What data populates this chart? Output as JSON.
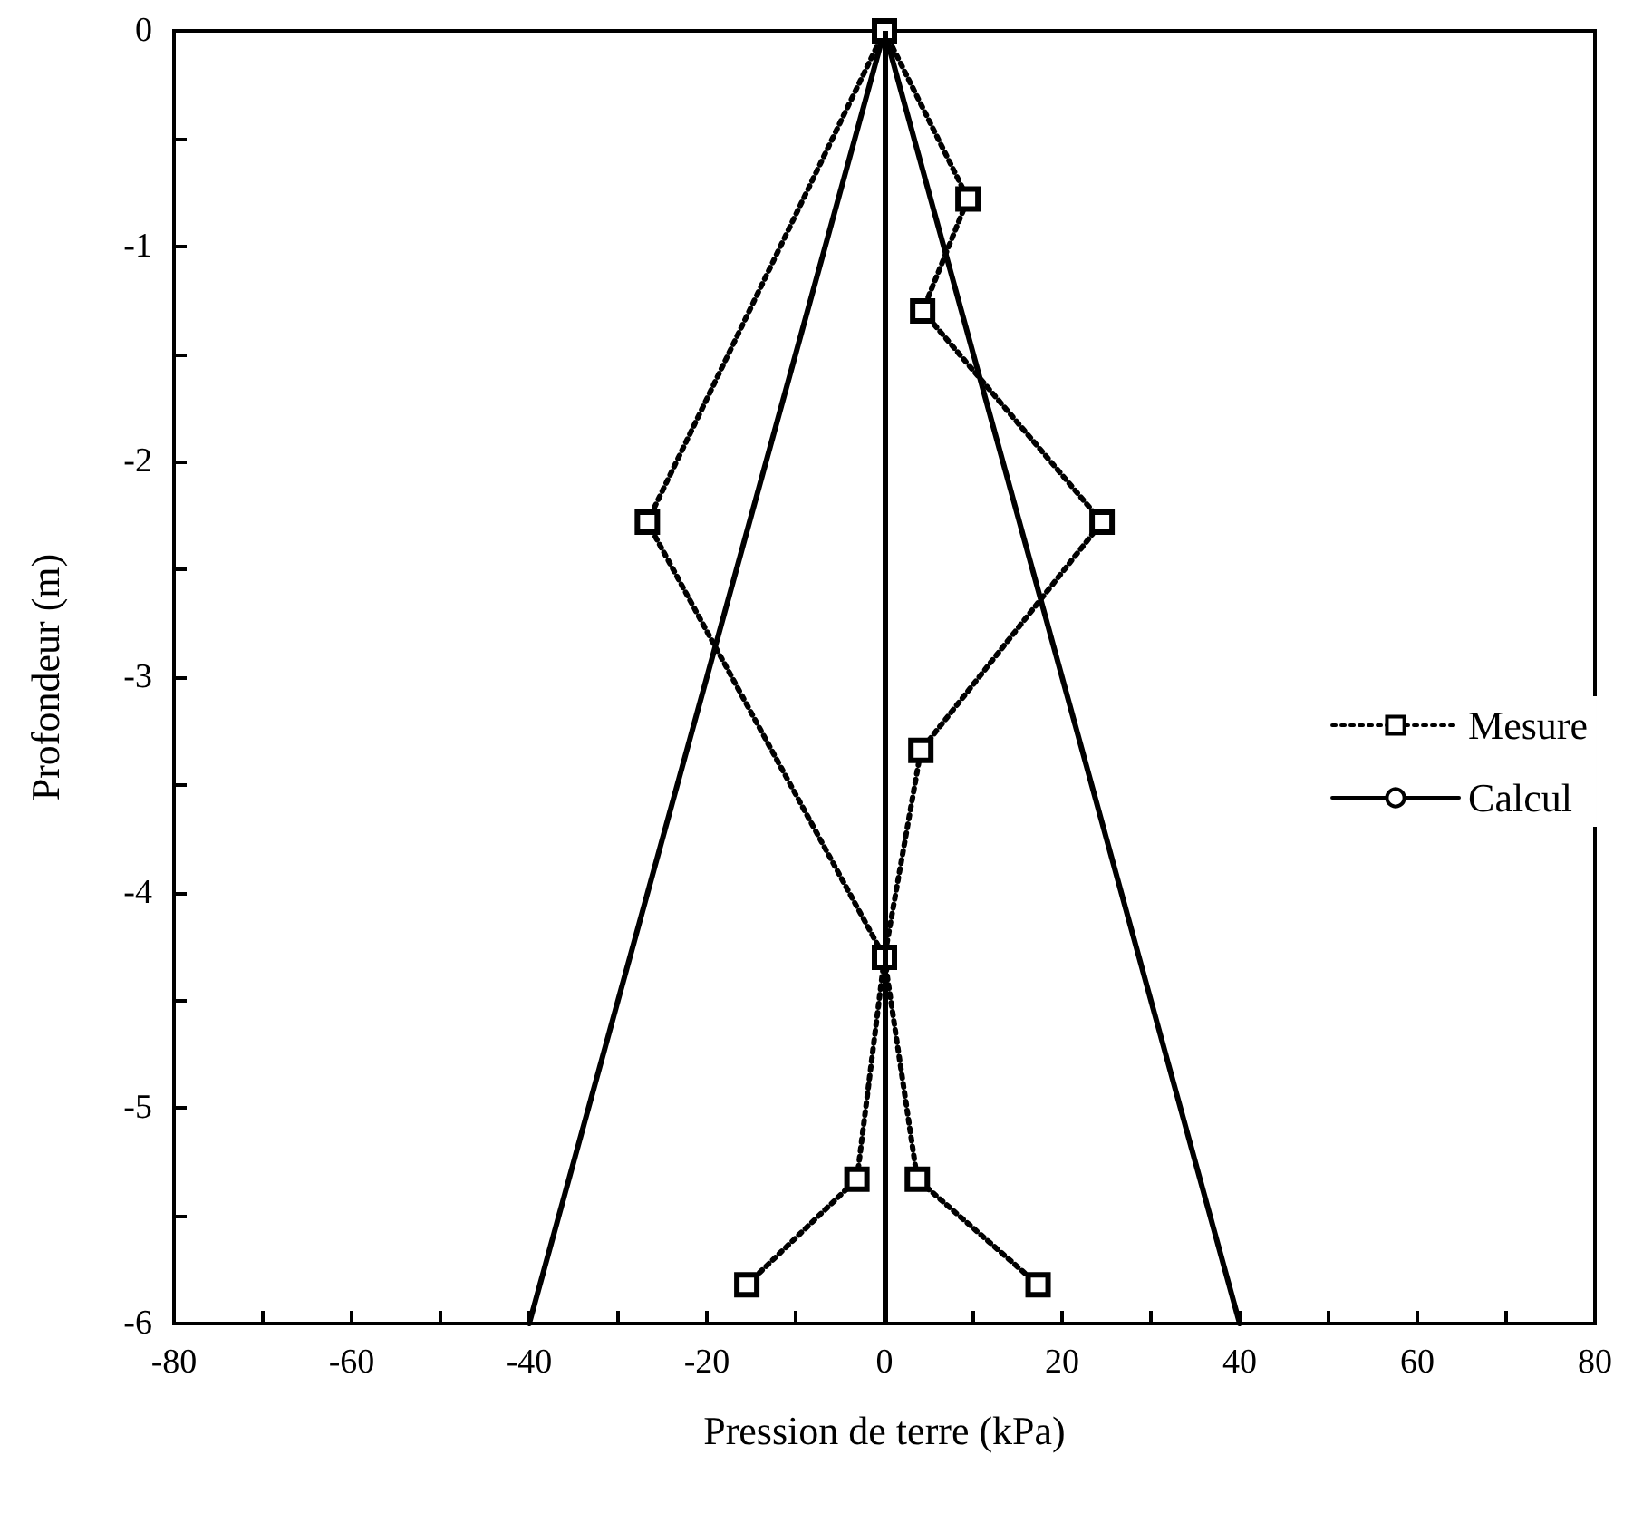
{
  "chart_data": {
    "type": "line",
    "xlabel": "Pression de terre (kPa)",
    "ylabel": "Profondeur (m)",
    "xlim": [
      -80,
      80
    ],
    "ylim": [
      -6,
      0
    ],
    "xticks": [
      -80,
      {
        "value": -70,
        "label": null
      },
      -60,
      {
        "value": -50,
        "label": null
      },
      -40,
      {
        "value": -30,
        "label": null
      },
      -20,
      {
        "value": -10,
        "label": null
      },
      0,
      {
        "value": 10,
        "label": null
      },
      20,
      {
        "value": 30,
        "label": null
      },
      40,
      {
        "value": 50,
        "label": null
      },
      60,
      {
        "value": 70,
        "label": null
      },
      80
    ],
    "yticks": [
      -6,
      {
        "value": -5.5,
        "label": null
      },
      -5,
      {
        "value": -4.5,
        "label": null
      },
      -4,
      {
        "value": -3.5,
        "label": null
      },
      -3,
      {
        "value": -2.5,
        "label": null
      },
      -2,
      {
        "value": -1.5,
        "label": null
      },
      -1,
      {
        "value": -0.5,
        "label": null
      },
      0
    ],
    "grid": false,
    "legend": "right",
    "ref_lines": [
      {
        "axis": "x",
        "value": 0,
        "color": "#000000",
        "line_style": "solid"
      }
    ],
    "series": [
      {
        "name": "Mesure",
        "color": "#000000",
        "marker": "square",
        "line_style": "dotted",
        "x": [
          0,
          9.4,
          4.3,
          24.5,
          4.1,
          0,
          3.7,
          17.3
        ],
        "values": [
          0,
          -0.78,
          -1.3,
          -2.28,
          -3.34,
          -4.3,
          -5.33,
          -5.82
        ]
      },
      {
        "color": "#000000",
        "marker": "square",
        "line_style": "dotted",
        "x": [
          0,
          -26.7,
          0,
          -3.1,
          -15.5
        ],
        "values": [
          0,
          -2.28,
          -4.3,
          -5.33,
          -5.82
        ]
      },
      {
        "name": "Calcul",
        "color": "#000000",
        "marker": "none",
        "line_style": "solid",
        "x": [
          -40,
          0,
          40
        ],
        "values": [
          -6,
          0,
          -6
        ]
      }
    ]
  }
}
